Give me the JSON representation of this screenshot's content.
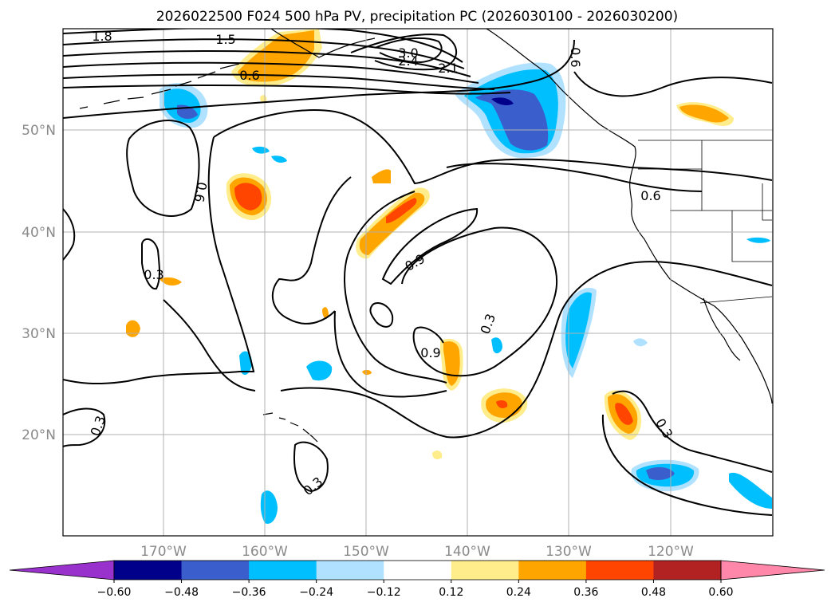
{
  "title": "2026022500 F024 500 hPa PV, precipitation PC (2026030100 - 2026030200)",
  "lat_labels": [
    "50°N",
    "40°N",
    "30°N",
    "20°N"
  ],
  "lon_labels": [
    "170°W",
    "160°W",
    "150°W",
    "140°W",
    "130°W",
    "120°W"
  ],
  "contour_labels": [
    "1.8",
    "1.5",
    "3.0",
    "2.4",
    "2.1",
    "0.6",
    "0.6",
    "0.6",
    "0.6",
    "0.3",
    "0.9",
    "0.3",
    "0.9",
    "0.3",
    "0.3",
    "0.3"
  ],
  "colorbar": {
    "ticks": [
      "−0.60",
      "−0.48",
      "−0.36",
      "−0.24",
      "−0.12",
      "0.12",
      "0.24",
      "0.36",
      "0.48",
      "0.60"
    ],
    "colors": [
      "#9932cc",
      "#00008b",
      "#3a5fcd",
      "#00bfff",
      "#b0e2ff",
      "#ffffff",
      "#ffec8b",
      "#ffa500",
      "#ff4500",
      "#b22222",
      "#ff88aa"
    ]
  },
  "shading_colors": {
    "neg_1": "#b0e2ff",
    "neg_2": "#00bfff",
    "neg_3": "#3a5fcd",
    "neg_4": "#00008b",
    "pos_1": "#ffec8b",
    "pos_2": "#ffa500",
    "pos_3": "#ff4500"
  }
}
